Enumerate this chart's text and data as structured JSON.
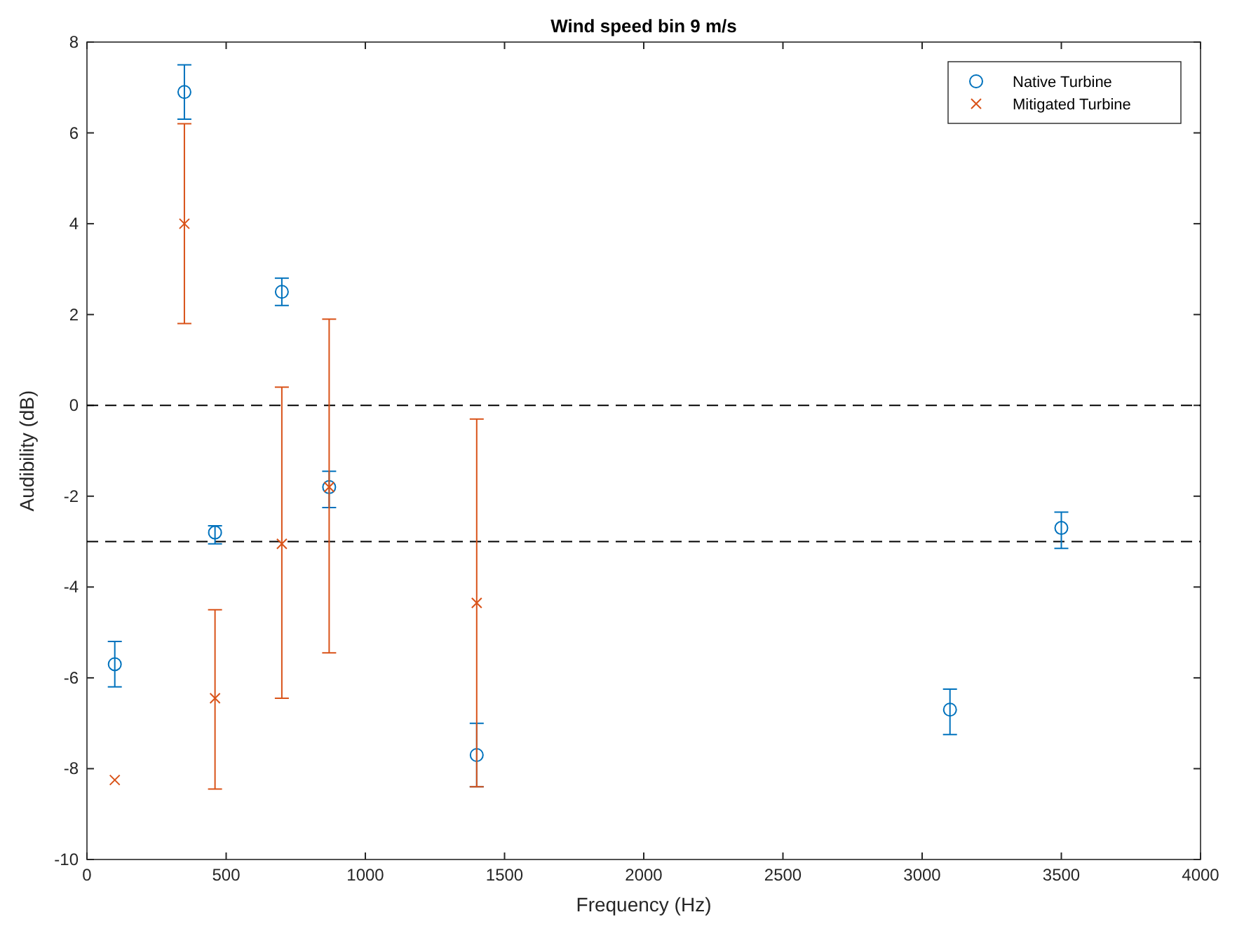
{
  "chart_data": {
    "type": "scatter",
    "title": "Wind speed bin 9 m/s",
    "xlabel": "Frequency (Hz)",
    "ylabel": "Audibility (dB)",
    "xlim": [
      0,
      4000
    ],
    "xticks": [
      0,
      500,
      1000,
      1500,
      2000,
      2500,
      3000,
      3500,
      4000
    ],
    "ylim": [
      -10,
      8
    ],
    "yticks": [
      -10,
      -8,
      -6,
      -4,
      -2,
      0,
      2,
      4,
      6,
      8
    ],
    "grid": false,
    "legend": "top right",
    "ref_lines": [
      {
        "axis": "y",
        "value": 0,
        "color": "#000000",
        "line_style": "dashed"
      },
      {
        "axis": "y",
        "value": -3,
        "color": "#000000",
        "line_style": "dashed"
      }
    ],
    "series": [
      {
        "name": "Native Turbine",
        "color": "#0072bd",
        "marker": "circle",
        "x": [
          100,
          350,
          460,
          700,
          870,
          1400,
          3100,
          3500
        ],
        "values": [
          -5.7,
          6.9,
          -2.8,
          2.5,
          -1.8,
          -7.7,
          -6.7,
          -2.7
        ],
        "errors": [
          [
            -6.2,
            -5.2
          ],
          [
            6.3,
            7.5
          ],
          [
            -3.05,
            -2.65
          ],
          [
            2.2,
            2.8
          ],
          [
            -2.25,
            -1.45
          ],
          [
            -8.4,
            -7
          ],
          [
            -7.25,
            -6.25
          ],
          [
            -3.15,
            -2.35
          ]
        ]
      },
      {
        "name": "Mitigated Turbine",
        "color": "#d95319",
        "marker": "cross",
        "x": [
          100,
          350,
          460,
          700,
          870,
          1400
        ],
        "values": [
          -8.25,
          4,
          -6.45,
          -3.05,
          -1.8,
          -4.35
        ],
        "errors": [
          null,
          [
            1.8,
            6.2
          ],
          [
            -8.45,
            -4.5
          ],
          [
            -6.45,
            0.4
          ],
          [
            -5.45,
            1.9
          ],
          [
            -8.4,
            -0.3
          ]
        ]
      }
    ]
  }
}
